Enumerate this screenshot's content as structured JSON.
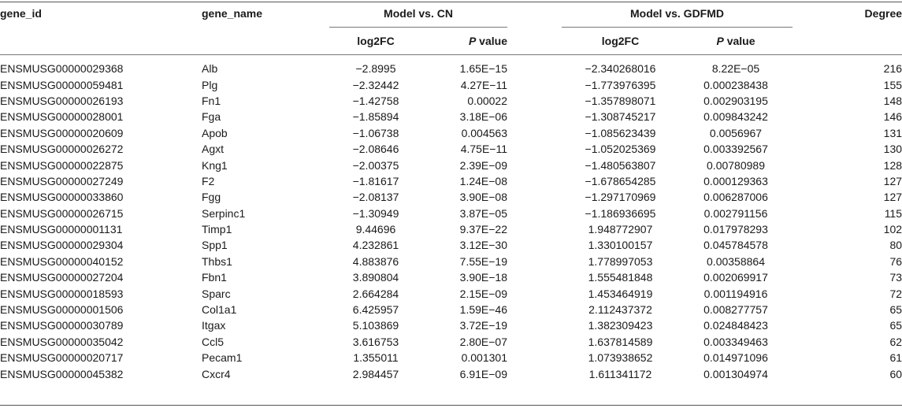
{
  "headers": {
    "gene_id": "gene_id",
    "gene_name": "gene_name",
    "group1": "Model vs. CN",
    "group2": "Model vs. GDFMD",
    "degree": "Degree",
    "log2fc": "log2FC",
    "p_letter": "P",
    "p_rest": " value"
  },
  "rows": [
    [
      "ENSMUSG00000029368",
      "Alb",
      "−2.8995",
      "1.65E−15",
      "−2.340268016",
      "8.22E−05",
      "216"
    ],
    [
      "ENSMUSG00000059481",
      "Plg",
      "−2.32442",
      "4.27E−11",
      "−1.773976395",
      "0.000238438",
      "155"
    ],
    [
      "ENSMUSG00000026193",
      "Fn1",
      "−1.42758",
      "0.00022",
      "−1.357898071",
      "0.002903195",
      "148"
    ],
    [
      "ENSMUSG00000028001",
      "Fga",
      "−1.85894",
      "3.18E−06",
      "−1.308745217",
      "0.009843242",
      "146"
    ],
    [
      "ENSMUSG00000020609",
      "Apob",
      "−1.06738",
      "0.004563",
      "−1.085623439",
      "0.0056967",
      "131"
    ],
    [
      "ENSMUSG00000026272",
      "Agxt",
      "−2.08646",
      "4.75E−11",
      "−1.052025369",
      "0.003392567",
      "130"
    ],
    [
      "ENSMUSG00000022875",
      "Kng1",
      "−2.00375",
      "2.39E−09",
      "−1.480563807",
      "0.00780989",
      "128"
    ],
    [
      "ENSMUSG00000027249",
      "F2",
      "−1.81617",
      "1.24E−08",
      "−1.678654285",
      "0.000129363",
      "127"
    ],
    [
      "ENSMUSG00000033860",
      "Fgg",
      "−2.08137",
      "3.90E−08",
      "−1.297170969",
      "0.006287006",
      "127"
    ],
    [
      "ENSMUSG00000026715",
      "Serpinc1",
      "−1.30949",
      "3.87E−05",
      "−1.186936695",
      "0.002791156",
      "115"
    ],
    [
      "ENSMUSG00000001131",
      "Timp1",
      "9.44696",
      "9.37E−22",
      "1.948772907",
      "0.017978293",
      "102"
    ],
    [
      "ENSMUSG00000029304",
      "Spp1",
      "4.232861",
      "3.12E−30",
      "1.330100157",
      "0.045784578",
      "80"
    ],
    [
      "ENSMUSG00000040152",
      "Thbs1",
      "4.883876",
      "7.55E−19",
      "1.778997053",
      "0.00358864",
      "76"
    ],
    [
      "ENSMUSG00000027204",
      "Fbn1",
      "3.890804",
      "3.90E−18",
      "1.555481848",
      "0.002069917",
      "73"
    ],
    [
      "ENSMUSG00000018593",
      "Sparc",
      "2.664284",
      "2.15E−09",
      "1.453464919",
      "0.001194916",
      "72"
    ],
    [
      "ENSMUSG00000001506",
      "Col1a1",
      "6.425957",
      "1.59E−46",
      "2.112437372",
      "0.008277757",
      "65"
    ],
    [
      "ENSMUSG00000030789",
      "Itgax",
      "5.103869",
      "3.72E−19",
      "1.382309423",
      "0.024848423",
      "65"
    ],
    [
      "ENSMUSG00000035042",
      "Ccl5",
      "3.616753",
      "2.80E−07",
      "1.637814589",
      "0.003349463",
      "62"
    ],
    [
      "ENSMUSG00000020717",
      "Pecam1",
      "1.355011",
      "0.001301",
      "1.073938652",
      "0.014971096",
      "61"
    ],
    [
      "ENSMUSG00000045382",
      "Cxcr4",
      "2.984457",
      "6.91E−09",
      "1.611341172",
      "0.001304974",
      "60"
    ]
  ]
}
